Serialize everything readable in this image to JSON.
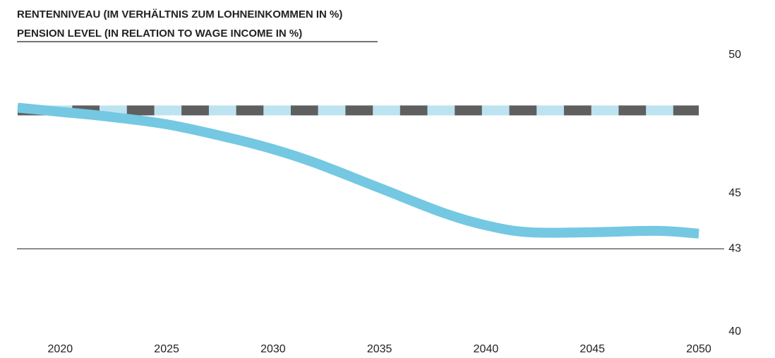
{
  "chart_data": {
    "type": "line",
    "title": "RENTENNIVEAU (IM VERHÄLTNIS ZUM LOHNEINKOMMEN IN %)",
    "subtitle": "PENSION LEVEL (IN RELATION TO WAGE INCOME IN %)",
    "x": [
      2018,
      2020,
      2022,
      2025,
      2028,
      2030,
      2032,
      2035,
      2038,
      2040,
      2042,
      2045,
      2048,
      2050
    ],
    "series": [
      {
        "color": "#bde3f0",
        "dash_color": "#5f5f5f",
        "dashed": true,
        "values": [
          48,
          48,
          48,
          48,
          48,
          48,
          48,
          48,
          48,
          48,
          48,
          48,
          48,
          48
        ]
      },
      {
        "color": "#74c8e2",
        "values": [
          48.1,
          47.95,
          47.8,
          47.5,
          47.0,
          46.6,
          46.1,
          45.2,
          44.3,
          43.85,
          43.6,
          43.6,
          43.65,
          43.55
        ]
      }
    ],
    "xlim": [
      2018,
      2050
    ],
    "xticks": [
      2020,
      2025,
      2030,
      2035,
      2040,
      2045,
      2050
    ],
    "ylim": [
      40,
      50
    ],
    "yticks": [
      40,
      43,
      45,
      50
    ],
    "reference_line": 43
  }
}
